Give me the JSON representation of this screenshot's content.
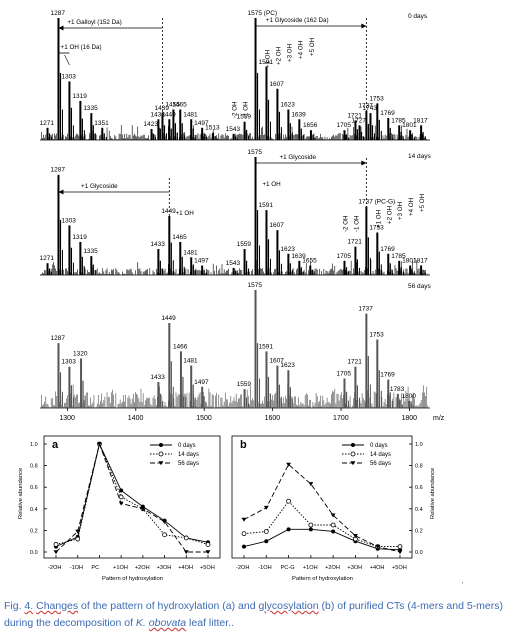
{
  "figure": {
    "caption": {
      "prefix": "Fig. ",
      "fig_label": "4.",
      "space1": " ",
      "w_changes": "Changes",
      "mid": " of the pattern of hydroxylation (a) and ",
      "w_glyco": "glycosylation",
      "rest1": " (b) of purified CTs (4-mers and 5-mers) during the decomposition of ",
      "species_genus": "K. ",
      "species_name": "obovata",
      "rest2": " leaf litter.",
      "end_mark": "."
    },
    "corner_mark": "'"
  },
  "chart_data": [
    {
      "type": "bar",
      "panel": "mass-spectrum-0-days",
      "label": "0 days",
      "xlim": [
        1260,
        1830
      ],
      "peak_labels": [
        {
          "text": "1287",
          "x": 1287,
          "y": 100
        },
        {
          "text": "1303",
          "x": 1303,
          "y": 48
        },
        {
          "text": "1319",
          "x": 1319,
          "y": 32
        },
        {
          "text": "1335",
          "x": 1335,
          "y": 22
        },
        {
          "text": "1351",
          "x": 1351,
          "y": 10
        },
        {
          "text": "1271",
          "x": 1271,
          "y": 10
        },
        {
          "text": "1423",
          "x": 1423,
          "y": 9
        },
        {
          "text": "1433",
          "x": 1433,
          "y": 17
        },
        {
          "text": "1439",
          "x": 1439,
          "y": 22
        },
        {
          "text": "1449",
          "x": 1449,
          "y": 17
        },
        {
          "text": "1455",
          "x": 1455,
          "y": 25
        },
        {
          "text": "1465",
          "x": 1465,
          "y": 25
        },
        {
          "text": "1481",
          "x": 1481,
          "y": 17
        },
        {
          "text": "1497",
          "x": 1497,
          "y": 10
        },
        {
          "text": "1513",
          "x": 1513,
          "y": 6
        },
        {
          "text": "1543",
          "x": 1543,
          "y": 5
        },
        {
          "text": "1559",
          "x": 1559,
          "y": 15
        },
        {
          "text": "1575 (PC)",
          "x": 1575,
          "y": 100
        },
        {
          "text": "1591",
          "x": 1591,
          "y": 60
        },
        {
          "text": "1607",
          "x": 1607,
          "y": 42
        },
        {
          "text": "1623",
          "x": 1623,
          "y": 25
        },
        {
          "text": "1639",
          "x": 1639,
          "y": 17
        },
        {
          "text": "1656",
          "x": 1656,
          "y": 8
        },
        {
          "text": "1705",
          "x": 1705,
          "y": 8
        },
        {
          "text": "1721",
          "x": 1721,
          "y": 16
        },
        {
          "text": "1727",
          "x": 1727,
          "y": 12
        },
        {
          "text": "1737",
          "x": 1737,
          "y": 24
        },
        {
          "text": "1743",
          "x": 1743,
          "y": 22
        },
        {
          "text": "1753",
          "x": 1753,
          "y": 30
        },
        {
          "text": "1769",
          "x": 1769,
          "y": 18
        },
        {
          "text": "1785",
          "x": 1785,
          "y": 12
        },
        {
          "text": "1801",
          "x": 1801,
          "y": 8
        },
        {
          "text": "1817",
          "x": 1817,
          "y": 12
        }
      ],
      "annotations": [
        "+1 Galloyl (152 Da)",
        "+1 OH (16 Da)",
        "+1 Glycoside (162 Da)",
        "-2 OH",
        "-1 OH",
        "+1 OH",
        "+2 OH",
        "+3 OH",
        "+4 OH",
        "+5 OH"
      ]
    },
    {
      "type": "bar",
      "panel": "mass-spectrum-14-days",
      "label": "14 days",
      "xlim": [
        1260,
        1830
      ],
      "peak_labels": [
        {
          "text": "1287",
          "x": 1287,
          "y": 85
        },
        {
          "text": "1303",
          "x": 1303,
          "y": 42
        },
        {
          "text": "1319",
          "x": 1319,
          "y": 28
        },
        {
          "text": "1335",
          "x": 1335,
          "y": 16
        },
        {
          "text": "1271",
          "x": 1271,
          "y": 10
        },
        {
          "text": "1433",
          "x": 1433,
          "y": 22
        },
        {
          "text": "1449",
          "x": 1449,
          "y": 50
        },
        {
          "text": "1465",
          "x": 1465,
          "y": 28
        },
        {
          "text": "1481",
          "x": 1481,
          "y": 15
        },
        {
          "text": "1497",
          "x": 1497,
          "y": 8
        },
        {
          "text": "1543",
          "x": 1543,
          "y": 6
        },
        {
          "text": "1559",
          "x": 1559,
          "y": 22
        },
        {
          "text": "1575",
          "x": 1575,
          "y": 100
        },
        {
          "text": "1591",
          "x": 1591,
          "y": 55
        },
        {
          "text": "1607",
          "x": 1607,
          "y": 38
        },
        {
          "text": "1623",
          "x": 1623,
          "y": 18
        },
        {
          "text": "1639",
          "x": 1639,
          "y": 12
        },
        {
          "text": "1655",
          "x": 1655,
          "y": 8
        },
        {
          "text": "1705",
          "x": 1705,
          "y": 12
        },
        {
          "text": "1721",
          "x": 1721,
          "y": 24
        },
        {
          "text": "1737 (PC-G)",
          "x": 1737,
          "y": 58
        },
        {
          "text": "1753",
          "x": 1753,
          "y": 36
        },
        {
          "text": "1769",
          "x": 1769,
          "y": 18
        },
        {
          "text": "1785",
          "x": 1785,
          "y": 12
        },
        {
          "text": "1801",
          "x": 1801,
          "y": 8
        },
        {
          "text": "1817",
          "x": 1817,
          "y": 8
        }
      ],
      "annotations": [
        "+1 Glycoside",
        "+1 OH",
        "+1 Glycoside",
        "+1 OH",
        "-2 OH",
        "-1 OH",
        "+1 OH",
        "+2 OH",
        "+3 OH",
        "+4 OH",
        "+5 OH"
      ]
    },
    {
      "type": "bar",
      "panel": "mass-spectrum-56-days",
      "label": "56 days",
      "xlim": [
        1260,
        1830
      ],
      "x_ticks": [
        "1300",
        "1400",
        "1500",
        "1600",
        "1700",
        "1800"
      ],
      "x_tick_values": [
        1300,
        1400,
        1500,
        1600,
        1700,
        1800
      ],
      "xlabel": "m/z",
      "peak_labels": [
        {
          "text": "1287",
          "x": 1287,
          "y": 55
        },
        {
          "text": "1320",
          "x": 1320,
          "y": 42
        },
        {
          "text": "1303",
          "x": 1303,
          "y": 35
        },
        {
          "text": "1433",
          "x": 1433,
          "y": 22
        },
        {
          "text": "1449",
          "x": 1449,
          "y": 72
        },
        {
          "text": "1466",
          "x": 1466,
          "y": 48
        },
        {
          "text": "1481",
          "x": 1481,
          "y": 36
        },
        {
          "text": "1497",
          "x": 1497,
          "y": 18
        },
        {
          "text": "1559",
          "x": 1559,
          "y": 16
        },
        {
          "text": "1575",
          "x": 1575,
          "y": 100
        },
        {
          "text": "1591",
          "x": 1591,
          "y": 48
        },
        {
          "text": "1607",
          "x": 1607,
          "y": 36
        },
        {
          "text": "1623",
          "x": 1623,
          "y": 32
        },
        {
          "text": "1705",
          "x": 1705,
          "y": 25
        },
        {
          "text": "1721",
          "x": 1721,
          "y": 35
        },
        {
          "text": "1737",
          "x": 1737,
          "y": 80
        },
        {
          "text": "1753",
          "x": 1753,
          "y": 58
        },
        {
          "text": "1769",
          "x": 1769,
          "y": 24
        },
        {
          "text": "1783",
          "x": 1783,
          "y": 12
        },
        {
          "text": "1800",
          "x": 1800,
          "y": 6
        }
      ]
    },
    {
      "type": "line",
      "panel": "a",
      "panel_label": "a",
      "xlabel": "Pattern of hydroxylation",
      "ylabel": "Relative abundance",
      "categories": [
        "-2OH",
        "-1OH",
        "PC",
        "+1OH",
        "+2OH",
        "+3OH",
        "+4OH",
        "+5OH"
      ],
      "ylim": [
        0,
        1.0
      ],
      "y_ticks": [
        "0.0",
        "0.2",
        "0.4",
        "0.6",
        "0.8",
        "1.0"
      ],
      "legend_position": "top-right",
      "series": [
        {
          "name": "0 days",
          "marker": "filled-circle",
          "dash": "solid",
          "values": [
            0.05,
            0.14,
            1.0,
            0.57,
            0.42,
            0.29,
            0.13,
            0.09
          ]
        },
        {
          "name": "14 days",
          "marker": "open-circle",
          "dash": "dotted",
          "values": [
            0.07,
            0.12,
            1.0,
            0.51,
            0.4,
            0.16,
            0.13,
            0.07
          ]
        },
        {
          "name": "56 days",
          "marker": "filled-triangle-down",
          "dash": "dashed",
          "values": [
            0.0,
            0.19,
            1.0,
            0.45,
            0.4,
            0.28,
            0.0,
            0.0
          ]
        }
      ]
    },
    {
      "type": "line",
      "panel": "b",
      "panel_label": "b",
      "xlabel": "Pattern of hydroxylation",
      "ylabel": "Relative abundance",
      "categories": [
        "-2OH",
        "-1OH",
        "PC-G",
        "+1OH",
        "+2OH",
        "+3OH",
        "+4OH",
        "+5OH"
      ],
      "ylim": [
        0,
        1.0
      ],
      "y_ticks": [
        "0.0",
        "0.2",
        "0.4",
        "0.6",
        "0.8",
        "1.0"
      ],
      "legend_position": "top-right",
      "series": [
        {
          "name": "0 days",
          "marker": "filled-circle",
          "dash": "solid",
          "values": [
            0.05,
            0.1,
            0.21,
            0.21,
            0.19,
            0.1,
            0.03,
            0.02
          ]
        },
        {
          "name": "14 days",
          "marker": "open-circle",
          "dash": "dotted",
          "values": [
            0.17,
            0.19,
            0.47,
            0.25,
            0.25,
            0.12,
            0.05,
            0.05
          ]
        },
        {
          "name": "56 days",
          "marker": "filled-triangle-down",
          "dash": "dashed",
          "values": [
            0.3,
            0.41,
            0.81,
            0.63,
            0.34,
            0.15,
            0.05,
            0.0
          ]
        }
      ]
    }
  ]
}
